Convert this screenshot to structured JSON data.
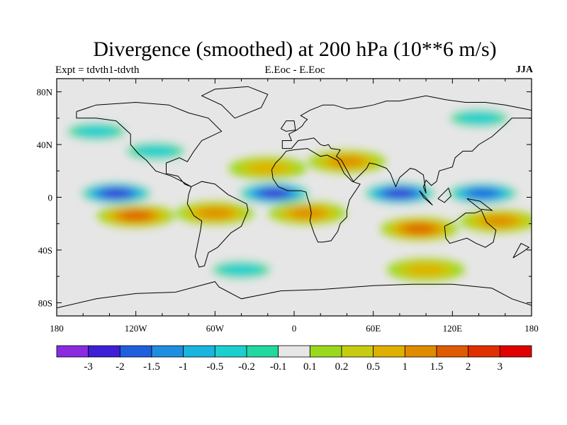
{
  "title": "Divergence (smoothed) at 200 hPa (10**6 m/s)",
  "subtitle_left": "Expt = tdvth1-tdvth",
  "subtitle_center": "E.Eoc - E.Eoc",
  "subtitle_right": "JJA",
  "axes": {
    "lat_ticks": [
      "80N",
      "40N",
      "0",
      "40S",
      "80S"
    ],
    "lon_ticks": [
      "180",
      "120W",
      "60W",
      "0",
      "60E",
      "120E",
      "180"
    ]
  },
  "colorbar": {
    "labels": [
      "-3",
      "-2",
      "-1.5",
      "-1",
      "-0.5",
      "-0.2",
      "-0.1",
      "0.1",
      "0.2",
      "0.5",
      "1",
      "1.5",
      "2",
      "3"
    ],
    "colors": [
      "#8a2be2",
      "#3f1fd6",
      "#1e5fe0",
      "#1e8fe0",
      "#19b4e0",
      "#1ccfcf",
      "#20d8a0",
      "#e6e6e6",
      "#9ad81e",
      "#c8cc10",
      "#e0b000",
      "#e08a00",
      "#e05a00",
      "#e03000",
      "#e00000"
    ]
  },
  "chart_data": {
    "type": "heatmap",
    "title": "Divergence (smoothed) at 200 hPa (10**6 m/s)",
    "experiment": "Expt = tdvth1-tdvth",
    "comparison": "E.Eoc - E.Eoc",
    "season": "JJA",
    "xlabel": "",
    "ylabel": "",
    "xlim": [
      -180,
      180
    ],
    "ylim": [
      -90,
      90
    ],
    "contour_levels": [
      -3,
      -2,
      -1.5,
      -1,
      -0.5,
      -0.2,
      -0.1,
      0.1,
      0.2,
      0.5,
      1,
      1.5,
      2,
      3
    ],
    "features": [
      {
        "lon": -135,
        "lat": 3,
        "value": -3
      },
      {
        "lon": -15,
        "lat": 3,
        "value": -3
      },
      {
        "lon": 80,
        "lat": 3,
        "value": -3
      },
      {
        "lon": 143,
        "lat": 3,
        "value": -2
      },
      {
        "lon": -120,
        "lat": -14,
        "value": 1.5
      },
      {
        "lon": -60,
        "lat": -12,
        "value": 1
      },
      {
        "lon": 10,
        "lat": -12,
        "value": 1
      },
      {
        "lon": 95,
        "lat": -24,
        "value": 1.5
      },
      {
        "lon": 155,
        "lat": -18,
        "value": 1
      },
      {
        "lon": 40,
        "lat": 27,
        "value": 1
      },
      {
        "lon": -105,
        "lat": 35,
        "value": -0.5
      },
      {
        "lon": -150,
        "lat": 50,
        "value": -0.5
      },
      {
        "lon": 140,
        "lat": 60,
        "value": -0.5
      },
      {
        "lon": -20,
        "lat": 22,
        "value": 0.5
      },
      {
        "lon": -40,
        "lat": -55,
        "value": -0.5
      },
      {
        "lon": 100,
        "lat": -55,
        "value": 0.5
      }
    ]
  }
}
